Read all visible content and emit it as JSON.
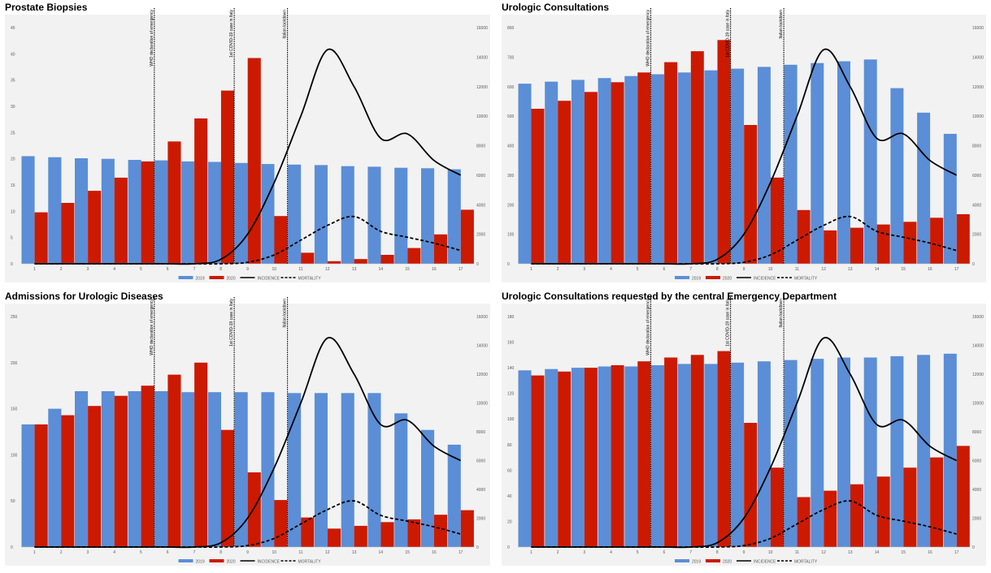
{
  "chart_data": [
    {
      "type": "bar",
      "title": "Prostate Biopsies",
      "categories": [
        "1",
        "2",
        "3",
        "4",
        "5",
        "6",
        "7",
        "8",
        "9",
        "10",
        "11",
        "12",
        "13",
        "14",
        "15",
        "16",
        "17"
      ],
      "series": [
        {
          "name": "2019",
          "values": [
            20.5,
            20.3,
            20.1,
            20.0,
            19.8,
            19.7,
            19.5,
            19.4,
            19.2,
            19.0,
            18.9,
            18.8,
            18.6,
            18.5,
            18.3,
            18.2,
            18.0
          ]
        },
        {
          "name": "2020",
          "values": [
            9.8,
            11.6,
            13.9,
            16.4,
            19.5,
            23.3,
            27.7,
            33.0,
            39.2,
            9.1,
            2.1,
            0.5,
            0.9,
            1.7,
            3.0,
            5.6,
            10.3
          ]
        }
      ],
      "ylim": [
        0,
        45
      ],
      "yticks": [
        0,
        5,
        10,
        15,
        20,
        25,
        30,
        35,
        40,
        45
      ],
      "y2lim": [
        0,
        16000
      ],
      "y2ticks": [
        0,
        2000,
        4000,
        6000,
        8000,
        10000,
        12000,
        14000,
        16000
      ],
      "lines": [
        {
          "name": "INCIDENCE",
          "style": "solid",
          "values": [
            0,
            0,
            0,
            0,
            0,
            0,
            0,
            300,
            2000,
            5500,
            10000,
            14500,
            12000,
            8500,
            8800,
            7000,
            6000
          ]
        },
        {
          "name": "MORTALITY",
          "style": "dashed",
          "values": [
            0,
            0,
            0,
            0,
            0,
            0,
            0,
            0,
            100,
            600,
            1600,
            2600,
            3200,
            2200,
            1800,
            1400,
            900
          ]
        }
      ],
      "events": [
        {
          "x": 5,
          "label": "WHO declaration of emergency"
        },
        {
          "x": 8,
          "label": "1st COVID-19 case in Italy"
        },
        {
          "x": 10,
          "label": "Italian lockdown"
        }
      ],
      "legend": [
        "2019",
        "2020",
        "INCIDENCE",
        "MORTALITY"
      ],
      "legend_position": "bottom",
      "grid": false
    },
    {
      "type": "bar",
      "title": "Urologic Consultations",
      "categories": [
        "1",
        "2",
        "3",
        "4",
        "5",
        "6",
        "7",
        "8",
        "9",
        "10",
        "11",
        "12",
        "13",
        "14",
        "15",
        "16",
        "17"
      ],
      "series": [
        {
          "name": "2019",
          "values": [
            610,
            617,
            623,
            629,
            636,
            642,
            648,
            655,
            661,
            667,
            674,
            680,
            686,
            692,
            595,
            512,
            440
          ]
        },
        {
          "name": "2020",
          "values": [
            525,
            552,
            582,
            615,
            648,
            683,
            720,
            758,
            470,
            292,
            182,
            113,
            122,
            133,
            142,
            156,
            168
          ]
        }
      ],
      "ylim": [
        0,
        800
      ],
      "yticks": [
        0,
        100,
        200,
        300,
        400,
        500,
        600,
        700,
        800
      ],
      "y2lim": [
        0,
        16000
      ],
      "y2ticks": [
        0,
        2000,
        4000,
        6000,
        8000,
        10000,
        12000,
        14000,
        16000
      ],
      "lines": [
        {
          "name": "INCIDENCE",
          "style": "solid",
          "values": [
            0,
            0,
            0,
            0,
            0,
            0,
            0,
            300,
            2000,
            5500,
            10000,
            14500,
            12000,
            8500,
            8800,
            7000,
            6000
          ]
        },
        {
          "name": "MORTALITY",
          "style": "dashed",
          "values": [
            0,
            0,
            0,
            0,
            0,
            0,
            0,
            0,
            100,
            600,
            1600,
            2600,
            3200,
            2200,
            1800,
            1400,
            900
          ]
        }
      ],
      "events": [
        {
          "x": 5,
          "label": "WHO declaration of emergency"
        },
        {
          "x": 8,
          "label": "1st COVID-19 case in Italy"
        },
        {
          "x": 10,
          "label": "Italian lockdown"
        }
      ],
      "legend": [
        "2019",
        "2020",
        "INCIDENCE",
        "MORTALITY"
      ],
      "legend_position": "bottom",
      "grid": false
    },
    {
      "type": "bar",
      "title": "Admissions for Urologic Diseases",
      "categories": [
        "1",
        "2",
        "3",
        "4",
        "5",
        "6",
        "7",
        "8",
        "9",
        "10",
        "11",
        "12",
        "13",
        "14",
        "15",
        "16",
        "17"
      ],
      "series": [
        {
          "name": "2019",
          "values": [
            133,
            150,
            169,
            169,
            169,
            169,
            168,
            168,
            168,
            168,
            167,
            167,
            167,
            167,
            145,
            127,
            111
          ]
        },
        {
          "name": "2020",
          "values": [
            133,
            143,
            153,
            164,
            175,
            187,
            200,
            127,
            81,
            51,
            32,
            20,
            23,
            27,
            30,
            35,
            40
          ]
        }
      ],
      "ylim": [
        0,
        250
      ],
      "yticks": [
        0,
        50,
        100,
        150,
        200,
        250
      ],
      "y2lim": [
        0,
        16000
      ],
      "y2ticks": [
        0,
        2000,
        4000,
        6000,
        8000,
        10000,
        12000,
        14000,
        16000
      ],
      "lines": [
        {
          "name": "INCIDENCE",
          "style": "solid",
          "values": [
            0,
            0,
            0,
            0,
            0,
            0,
            0,
            300,
            2000,
            5500,
            10000,
            14500,
            12000,
            8500,
            8800,
            7000,
            6000
          ]
        },
        {
          "name": "MORTALITY",
          "style": "dashed",
          "values": [
            0,
            0,
            0,
            0,
            0,
            0,
            0,
            0,
            100,
            600,
            1600,
            2600,
            3200,
            2200,
            1800,
            1400,
            900
          ]
        }
      ],
      "events": [
        {
          "x": 5,
          "label": "WHO declaration of emergency"
        },
        {
          "x": 8,
          "label": "1st COVID-19 case in Italy"
        },
        {
          "x": 10,
          "label": "Italian lockdown"
        }
      ],
      "legend": [
        "2019",
        "2020",
        "INCIDENCE",
        "MORTALITY"
      ],
      "legend_position": "bottom",
      "grid": false
    },
    {
      "type": "bar",
      "title": "Urologic Consultations requested by the central Emergency Department",
      "categories": [
        "1",
        "2",
        "3",
        "4",
        "5",
        "6",
        "7",
        "8",
        "9",
        "10",
        "11",
        "12",
        "13",
        "14",
        "15",
        "16",
        "17"
      ],
      "series": [
        {
          "name": "2019",
          "values": [
            138,
            139,
            140,
            141,
            141,
            142,
            143,
            143,
            144,
            145,
            146,
            147,
            148,
            148,
            149,
            150,
            151
          ]
        },
        {
          "name": "2020",
          "values": [
            134,
            137,
            140,
            142,
            145,
            148,
            150,
            153,
            97,
            62,
            39,
            44,
            49,
            55,
            62,
            70,
            79
          ]
        }
      ],
      "ylim": [
        0,
        180
      ],
      "yticks": [
        0,
        20,
        40,
        60,
        80,
        100,
        120,
        140,
        160,
        180
      ],
      "y2lim": [
        0,
        16000
      ],
      "y2ticks": [
        0,
        2000,
        4000,
        6000,
        8000,
        10000,
        12000,
        14000,
        16000
      ],
      "lines": [
        {
          "name": "INCIDENCE",
          "style": "solid",
          "values": [
            0,
            0,
            0,
            0,
            0,
            0,
            0,
            300,
            2000,
            5500,
            10000,
            14500,
            12000,
            8500,
            8800,
            7000,
            6000
          ]
        },
        {
          "name": "MORTALITY",
          "style": "dashed",
          "values": [
            0,
            0,
            0,
            0,
            0,
            0,
            0,
            0,
            100,
            600,
            1600,
            2600,
            3200,
            2200,
            1800,
            1400,
            900
          ]
        }
      ],
      "events": [
        {
          "x": 5,
          "label": "WHO declaration of emergency"
        },
        {
          "x": 8,
          "label": "1st COVID-19 case in Italy"
        },
        {
          "x": 10,
          "label": "Italian lockdown"
        }
      ],
      "legend": [
        "2019",
        "2020",
        "INCIDENCE",
        "MORTALITY"
      ],
      "legend_position": "bottom",
      "grid": false
    }
  ],
  "colors": {
    "series_2019": "#5b8ed6",
    "series_2020": "#cc1a00",
    "plot_bg": "#f2f2f2",
    "line": "#000000"
  }
}
